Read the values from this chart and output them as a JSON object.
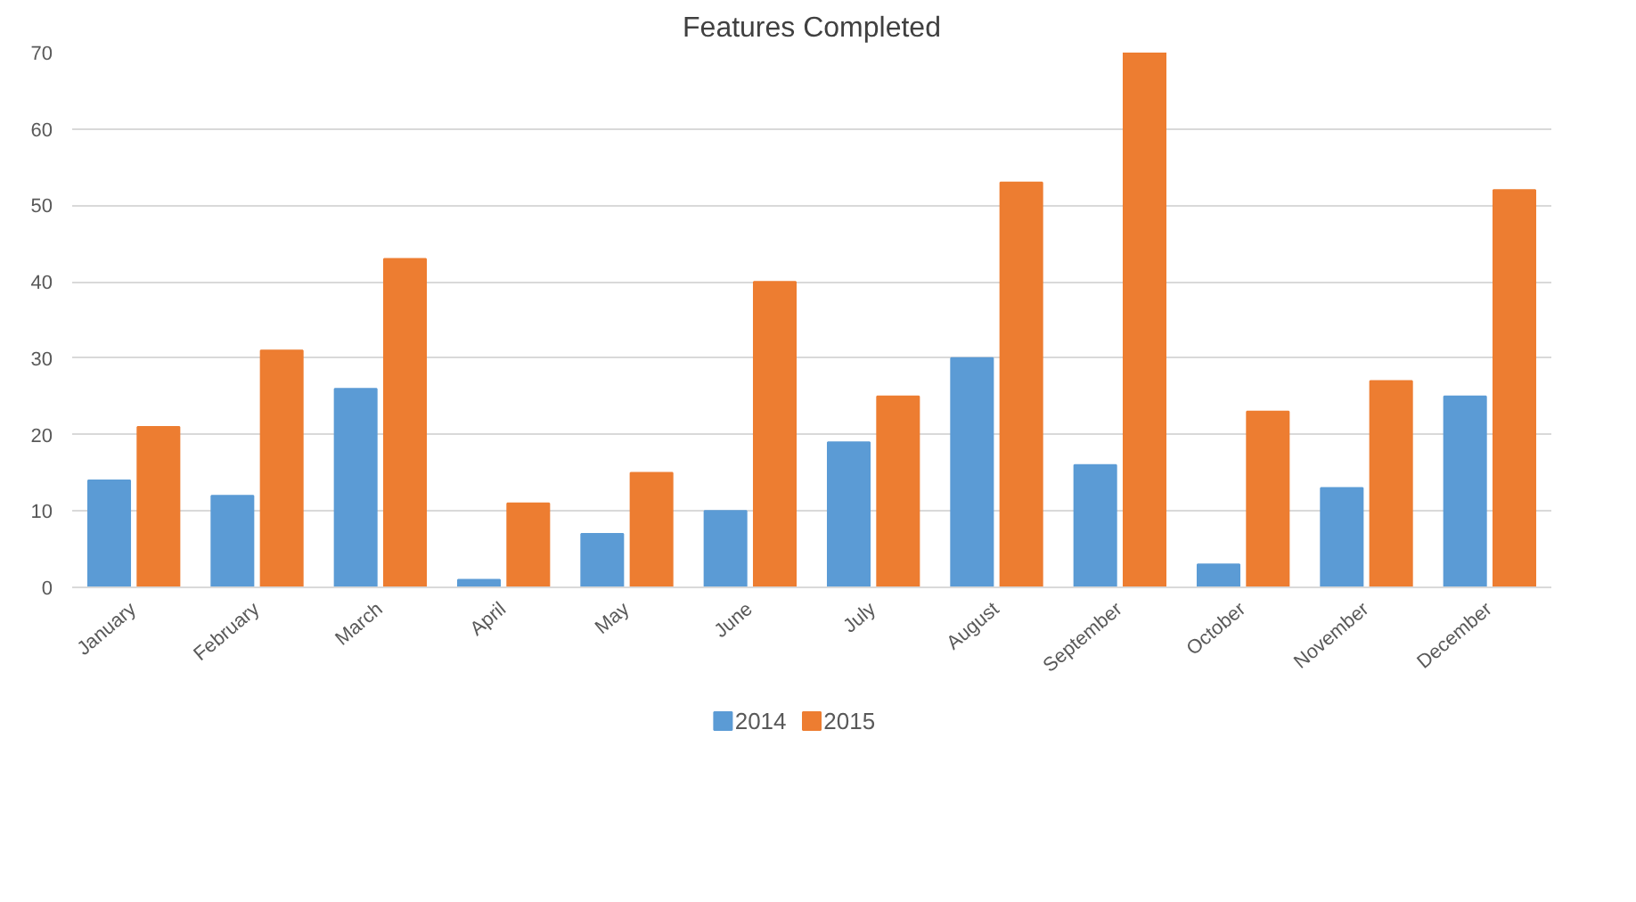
{
  "chart_data": {
    "type": "bar",
    "title": "Features Completed",
    "categories": [
      "January",
      "February",
      "March",
      "April",
      "May",
      "June",
      "July",
      "August",
      "September",
      "October",
      "November",
      "December"
    ],
    "series": [
      {
        "name": "2014",
        "color": "#5b9bd5",
        "values": [
          14,
          12,
          26,
          1,
          7,
          10,
          19,
          30,
          16,
          3,
          13,
          25
        ]
      },
      {
        "name": "2015",
        "color": "#ed7d31",
        "values": [
          21,
          31,
          43,
          11,
          15,
          40,
          25,
          53,
          70,
          23,
          27,
          52
        ]
      }
    ],
    "ylim": [
      0,
      70
    ],
    "yticks": [
      0,
      10,
      20,
      30,
      40,
      50,
      60,
      70
    ],
    "grid": "y",
    "legend": "bottom"
  }
}
